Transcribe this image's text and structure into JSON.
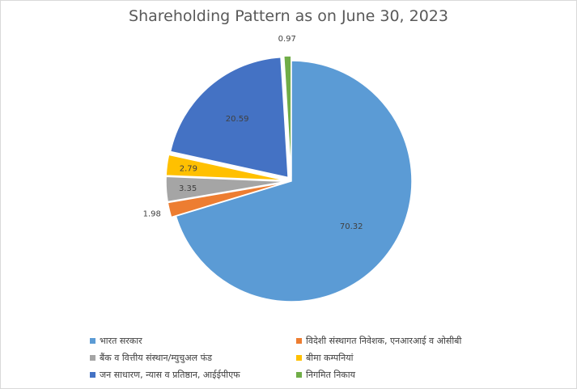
{
  "chart_data": {
    "type": "pie",
    "title": "Shareholding Pattern as on June 30, 2023",
    "slices": [
      {
        "label": "भारत सरकार",
        "value": 70.32,
        "value_label": "70.32",
        "color": "#5b9bd5"
      },
      {
        "label": "विदेशी संस्थागत निवेशक, एनआरआई व ओसीबी",
        "value": 1.98,
        "value_label": "1.98",
        "color": "#ed7d31"
      },
      {
        "label": "बैंक व वित्तीय संस्थान/म्युचुअल फंड",
        "value": 3.35,
        "value_label": "3.35",
        "color": "#a5a5a5"
      },
      {
        "label": "बीमा कम्पनियां",
        "value": 2.79,
        "value_label": "2.79",
        "color": "#ffc000"
      },
      {
        "label": "जन साधारण, न्यास व प्रतिष्ठान, आईईपीएफ",
        "value": 20.59,
        "value_label": "20.59",
        "color": "#4472c4"
      },
      {
        "label": "निगमित निकाय",
        "value": 0.97,
        "value_label": "0.97",
        "color": "#70ad47"
      }
    ],
    "legend_position": "bottom"
  }
}
